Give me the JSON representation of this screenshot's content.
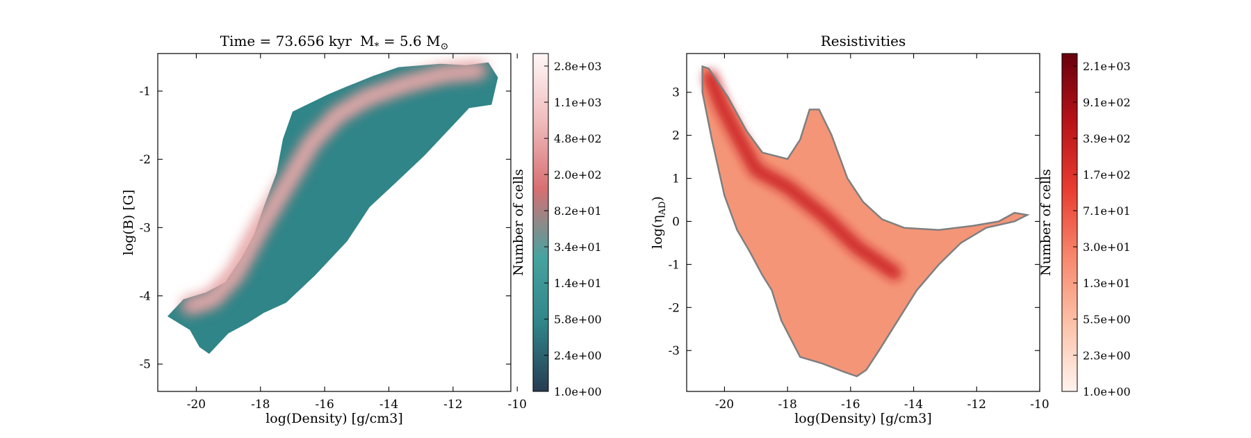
{
  "chart_data": [
    {
      "type": "heatmap",
      "title_parts": [
        "Time = 73.656 kyr",
        "M",
        "*",
        " = 5.6 M",
        "⊙"
      ],
      "xlabel": "log(Density) [g/cm3]",
      "ylabel": "log(B) [G]",
      "xlim": [
        -21.2,
        -10.2
      ],
      "ylim": [
        -5.4,
        -0.45
      ],
      "xticks": [
        -20,
        -18,
        -16,
        -14,
        -12,
        -10
      ],
      "yticks": [
        -5,
        -4,
        -3,
        -2,
        -1
      ],
      "tick_labels_x": [
        "-20",
        "-18",
        "-16",
        "-14",
        "-12",
        "-10"
      ],
      "tick_labels_y": [
        "-5",
        "-4",
        "-3",
        "-2",
        "-1"
      ],
      "colormap": [
        "#273b52",
        "#2f8588",
        "#47a3a0",
        "#d86f72",
        "#f0bcbd",
        "#fff7f7"
      ],
      "colorbar_label": "Number of cells",
      "colorbar_ticks": [
        "2.8e+03",
        "1.1e+03",
        "4.8e+02",
        "2.0e+02",
        "8.2e+01",
        "3.4e+01",
        "1.4e+01",
        "5.8e+00",
        "2.4e+00",
        "1.0e+00"
      ],
      "region_outline": [
        [
          -20.9,
          -4.3
        ],
        [
          -20.4,
          -4.05
        ],
        [
          -19.7,
          -3.95
        ],
        [
          -19.1,
          -3.8
        ],
        [
          -18.6,
          -3.45
        ],
        [
          -18.2,
          -3.1
        ],
        [
          -17.9,
          -2.7
        ],
        [
          -17.5,
          -2.2
        ],
        [
          -17.3,
          -1.7
        ],
        [
          -17.0,
          -1.3
        ],
        [
          -15.9,
          -1.05
        ],
        [
          -15.4,
          -0.95
        ],
        [
          -14.5,
          -0.78
        ],
        [
          -13.7,
          -0.65
        ],
        [
          -12.4,
          -0.6
        ],
        [
          -11.6,
          -0.62
        ],
        [
          -10.9,
          -0.58
        ],
        [
          -10.6,
          -0.8
        ],
        [
          -10.8,
          -1.2
        ],
        [
          -11.5,
          -1.25
        ],
        [
          -12.0,
          -1.5
        ],
        [
          -12.9,
          -1.95
        ],
        [
          -13.8,
          -2.35
        ],
        [
          -14.6,
          -2.7
        ],
        [
          -15.3,
          -3.2
        ],
        [
          -16.3,
          -3.7
        ],
        [
          -17.2,
          -4.1
        ],
        [
          -17.9,
          -4.25
        ],
        [
          -18.4,
          -4.4
        ],
        [
          -19.0,
          -4.55
        ],
        [
          -19.6,
          -4.85
        ],
        [
          -19.9,
          -4.75
        ],
        [
          -20.2,
          -4.5
        ],
        [
          -20.9,
          -4.3
        ]
      ],
      "ridge": [
        [
          -20.2,
          -4.15
        ],
        [
          -19.5,
          -4.05
        ],
        [
          -18.8,
          -3.7
        ],
        [
          -18.0,
          -3.0
        ],
        [
          -17.1,
          -2.3
        ],
        [
          -16.4,
          -1.75
        ],
        [
          -15.6,
          -1.35
        ],
        [
          -14.7,
          -1.1
        ],
        [
          -13.5,
          -0.9
        ],
        [
          -12.3,
          -0.75
        ],
        [
          -11.2,
          -0.7
        ]
      ],
      "ridge_width": 0.55
    },
    {
      "type": "heatmap",
      "title": "Resistivities",
      "xlabel": "log(Density) [g/cm3]",
      "ylabel_main": "log(η",
      "ylabel_sub": "AD",
      "ylabel_end": ")",
      "xlim": [
        -21.2,
        -10.0
      ],
      "ylim": [
        -3.95,
        3.9
      ],
      "xticks": [
        -20,
        -18,
        -16,
        -14,
        -12,
        -10
      ],
      "yticks": [
        -3,
        -2,
        -1,
        0,
        1,
        2,
        3
      ],
      "tick_labels_x": [
        "-20",
        "-18",
        "-16",
        "-14",
        "-12",
        "-10"
      ],
      "tick_labels_y": [
        "-3",
        "-2",
        "-1",
        "0",
        "1",
        "2",
        "3"
      ],
      "colormap": [
        "#fff3ee",
        "#fcc2a9",
        "#f7876c",
        "#e83c30",
        "#b71318",
        "#68000d"
      ],
      "colorbar_label": "Number of cells",
      "colorbar_ticks": [
        "2.1e+03",
        "9.1e+02",
        "3.9e+02",
        "1.7e+02",
        "7.1e+01",
        "3.0e+01",
        "1.3e+01",
        "5.5e+00",
        "2.3e+00",
        "1.0e+00"
      ],
      "region_outline": [
        [
          -20.7,
          3.6
        ],
        [
          -20.5,
          3.55
        ],
        [
          -19.9,
          2.9
        ],
        [
          -19.3,
          2.1
        ],
        [
          -18.8,
          1.6
        ],
        [
          -18.0,
          1.45
        ],
        [
          -17.6,
          1.9
        ],
        [
          -17.3,
          2.6
        ],
        [
          -17.0,
          2.6
        ],
        [
          -16.6,
          2.0
        ],
        [
          -16.1,
          1.0
        ],
        [
          -15.6,
          0.45
        ],
        [
          -15.0,
          0.05
        ],
        [
          -14.3,
          -0.15
        ],
        [
          -13.2,
          -0.2
        ],
        [
          -12.1,
          -0.1
        ],
        [
          -11.3,
          0.0
        ],
        [
          -10.8,
          0.2
        ],
        [
          -10.4,
          0.15
        ],
        [
          -10.8,
          0.0
        ],
        [
          -11.7,
          -0.15
        ],
        [
          -12.5,
          -0.5
        ],
        [
          -13.2,
          -1.0
        ],
        [
          -13.9,
          -1.6
        ],
        [
          -14.5,
          -2.3
        ],
        [
          -15.1,
          -3.0
        ],
        [
          -15.5,
          -3.45
        ],
        [
          -15.8,
          -3.6
        ],
        [
          -16.2,
          -3.5
        ],
        [
          -16.9,
          -3.3
        ],
        [
          -17.6,
          -3.15
        ],
        [
          -18.2,
          -2.3
        ],
        [
          -18.5,
          -1.6
        ],
        [
          -18.8,
          -1.25
        ],
        [
          -19.2,
          -0.7
        ],
        [
          -19.6,
          -0.2
        ],
        [
          -20.0,
          0.6
        ],
        [
          -20.4,
          1.9
        ],
        [
          -20.7,
          3.0
        ],
        [
          -20.7,
          3.6
        ]
      ],
      "ridge": [
        [
          -20.45,
          3.35
        ],
        [
          -20.1,
          2.7
        ],
        [
          -19.6,
          2.0
        ],
        [
          -19.0,
          1.2
        ],
        [
          -18.0,
          0.8
        ],
        [
          -16.8,
          0.1
        ],
        [
          -15.8,
          -0.6
        ],
        [
          -14.6,
          -1.2
        ]
      ],
      "ridge_width": 0.45
    }
  ]
}
